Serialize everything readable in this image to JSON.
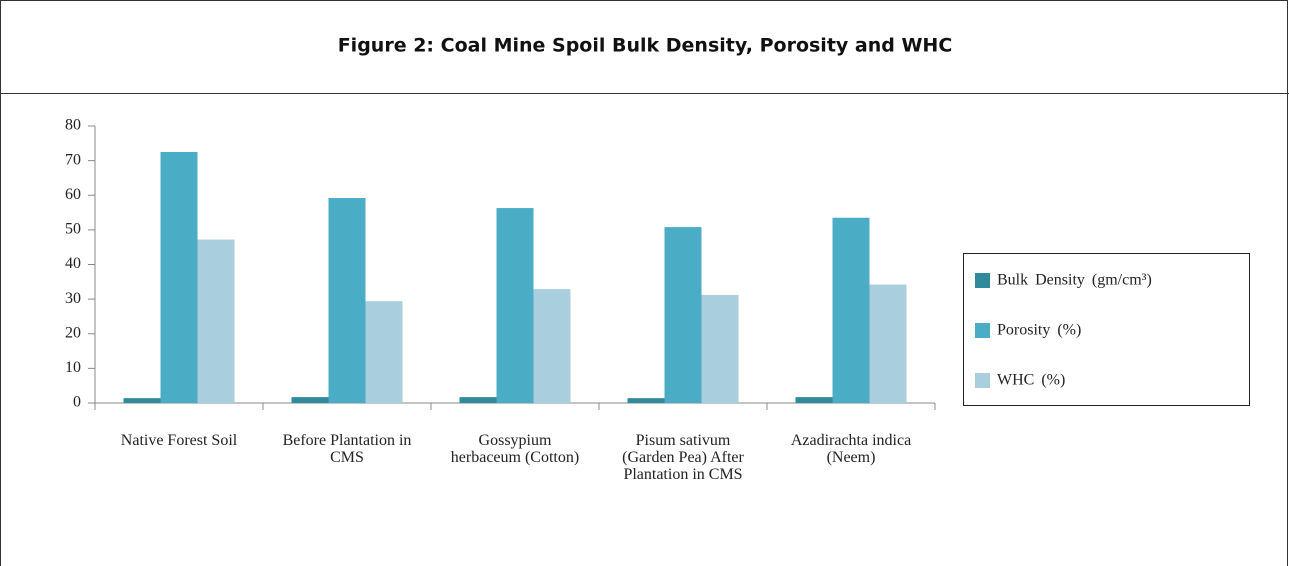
{
  "chart_data": {
    "type": "bar",
    "title": "Figure 2: Coal Mine Spoil Bulk Density, Porosity and WHC",
    "categories": [
      "Native Forest Soil",
      "Before Plantation in CMS",
      "Gossypium herbaceum (Cotton)",
      "Pisum sativum (Garden Pea) After Plantation in CMS",
      "Azadirachta indica (Neem)"
    ],
    "series": [
      {
        "name": "Bulk Density (gm/cm³)",
        "color": "#2f8a9c",
        "values": [
          1.4,
          1.7,
          1.7,
          1.4,
          1.7
        ]
      },
      {
        "name": "Porosity (%)",
        "color": "#4bacc6",
        "values": [
          72.5,
          59.2,
          56.3,
          50.8,
          53.5
        ]
      },
      {
        "name": "WHC (%)",
        "color": "#a9cfdf",
        "values": [
          47.2,
          29.4,
          32.9,
          31.2,
          34.2
        ]
      }
    ],
    "ylim": [
      0,
      80
    ],
    "yticks": [
      0,
      10,
      20,
      30,
      40,
      50,
      60,
      70,
      80
    ],
    "grid": false,
    "legend": "right"
  }
}
